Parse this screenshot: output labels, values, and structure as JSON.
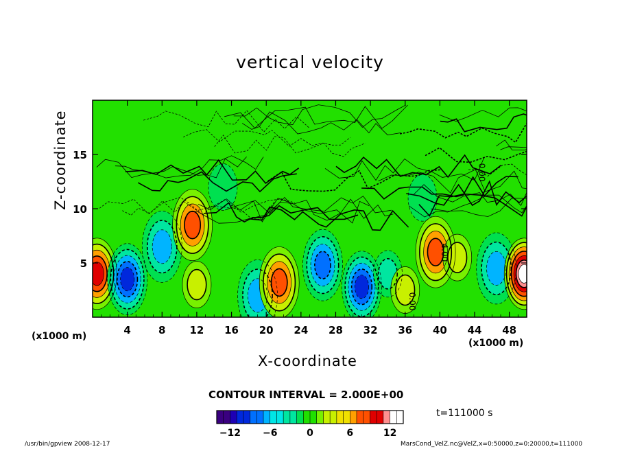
{
  "chart_data": {
    "type": "heatmap",
    "title": "vertical velocity",
    "xlabel": "X-coordinate",
    "ylabel": "Z-coordinate",
    "x_unit": "(x1000 m)",
    "xlim": [
      0,
      50
    ],
    "ylim": [
      0,
      20
    ],
    "x_ticks": [
      4,
      8,
      12,
      16,
      20,
      24,
      28,
      32,
      36,
      40,
      44,
      48
    ],
    "y_ticks": [
      5,
      10,
      15
    ],
    "contour_interval": "CONTOUR INTERVAL = 2.000E+00",
    "colorbar_ticks": [
      -12,
      -6,
      0,
      6,
      12
    ],
    "colorbar_range": [
      -14,
      14
    ],
    "contour_labels": [
      "0.00",
      "4.00"
    ],
    "features": [
      {
        "x": 0.5,
        "z": 4.0,
        "value": 9
      },
      {
        "x": 4.0,
        "z": 3.5,
        "value": -10
      },
      {
        "x": 8.0,
        "z": 6.5,
        "value": -6
      },
      {
        "x": 11.5,
        "z": 8.5,
        "value": 7
      },
      {
        "x": 12.0,
        "z": 3.0,
        "value": 3
      },
      {
        "x": 19.0,
        "z": 2.0,
        "value": -6
      },
      {
        "x": 21.5,
        "z": 3.2,
        "value": 8
      },
      {
        "x": 26.5,
        "z": 4.8,
        "value": -8
      },
      {
        "x": 31.0,
        "z": 2.8,
        "value": -9
      },
      {
        "x": 34.0,
        "z": 4.0,
        "value": -4
      },
      {
        "x": 36.0,
        "z": 2.5,
        "value": 3
      },
      {
        "x": 39.5,
        "z": 6.0,
        "value": 7
      },
      {
        "x": 42.0,
        "z": 5.5,
        "value": 4
      },
      {
        "x": 46.5,
        "z": 4.5,
        "value": -6
      },
      {
        "x": 49.7,
        "z": 4.0,
        "value": 14
      },
      {
        "x": 15.0,
        "z": 12.0,
        "value": -2
      },
      {
        "x": 38.0,
        "z": 11.0,
        "value": -2
      }
    ]
  },
  "labels": {
    "title": "vertical velocity",
    "xlabel": "X-coordinate",
    "ylabel": "Z-coordinate",
    "x_unit_left": "(x1000 m)",
    "x_unit_right": "(x1000 m)",
    "contour_note": "CONTOUR INTERVAL = 2.000E+00",
    "time": "t=111000 s",
    "footer_left": "/usr/bin/gpview   2008-12-17",
    "footer_right": "MarsCond_VelZ.nc@VelZ,x=0:50000,z=0:20000,t=111000"
  },
  "colors": {
    "background": "#ffffff",
    "zero_field": "#22e000",
    "colormap": [
      "#3a0080",
      "#1e00b4",
      "#0028dc",
      "#0070ff",
      "#00b4ff",
      "#00e6e6",
      "#00e6a0",
      "#00e050",
      "#20e000",
      "#78f000",
      "#c8f000",
      "#f0e000",
      "#ffa000",
      "#ff5000",
      "#e00000",
      "#ff9090",
      "#ffffff"
    ]
  }
}
